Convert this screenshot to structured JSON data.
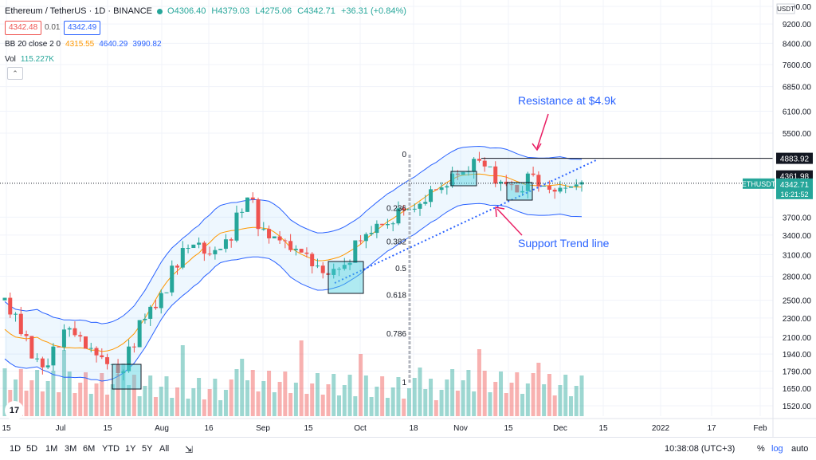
{
  "header": {
    "symbol_title": "Ethereum / TetherUS · 1D · BINANCE",
    "open": "O4306.40",
    "high": "H4379.03",
    "low": "L4275.06",
    "close": "C4342.71",
    "change": "+36.31 (+0.84%)",
    "sell_price": "4342.48",
    "spread": "0.01",
    "buy_price": "4342.49",
    "bb_label": "BB 20 close 2 0",
    "bb_basis": "4315.55",
    "bb_upper": "4640.29",
    "bb_lower": "3990.82",
    "vol_label": "Vol",
    "vol_value": "115.227K",
    "collapse_icon_glyph": "⌃"
  },
  "price_axis": {
    "currency": "USDT",
    "ticks": [
      "10000.00",
      "9200.00",
      "8400.00",
      "7600.00",
      "6850.00",
      "6100.00",
      "5500.00",
      "4883.92",
      "4361.98",
      "4342.71",
      "3700.00",
      "3400.00",
      "3100.00",
      "2800.00",
      "2500.00",
      "2300.00",
      "2100.00",
      "1940.00",
      "1790.00",
      "1650.00",
      "1520.00"
    ],
    "tick_values": [
      10000,
      9200,
      8400,
      7600,
      6850,
      6100,
      5500,
      4883.92,
      4361.98,
      4342.71,
      3700,
      3400,
      3100,
      2800,
      2500,
      2300,
      2100,
      1940,
      1790,
      1650,
      1520
    ],
    "resistance_label": "4883.92",
    "level_label": "4361.98",
    "last_price_label": "4342.71",
    "countdown": "16:21:52",
    "symbol_tag": "ETHUSDT"
  },
  "time_axis": {
    "labels": [
      "15",
      "Jul",
      "15",
      "Aug",
      "16",
      "Sep",
      "15",
      "Oct",
      "18",
      "Nov",
      "15",
      "Dec",
      "15",
      "2022",
      "17",
      "Feb"
    ]
  },
  "fib": {
    "levels": [
      "0",
      "0.236",
      "0.382",
      "0.5",
      "0.618",
      "0.786",
      "1"
    ],
    "values": [
      0,
      0.236,
      0.382,
      0.5,
      0.618,
      0.786,
      1
    ]
  },
  "annotations": {
    "resistance": "Resistance at $4.9k",
    "support": "Support Trend line"
  },
  "toolbar": {
    "timeframes": [
      "1D",
      "5D",
      "1M",
      "3M",
      "6M",
      "YTD",
      "1Y",
      "5Y",
      "All"
    ],
    "clock": "10:38:08 (UTC+3)",
    "percent": "%",
    "log": "log",
    "auto": "auto"
  },
  "logo_text": "17",
  "colors": {
    "up": "#26a69a",
    "down": "#ef5350",
    "band": "#2962ff",
    "basis": "#ff9800",
    "annotation": "#2962ff",
    "arrow": "#e91e63",
    "highlight_box": "#4dd0e1"
  },
  "chart_data": {
    "type": "candlestick",
    "x_range": [
      "Jun 2021",
      "Feb 2022"
    ],
    "y_scale": "log",
    "price_range": [
      1520,
      10000
    ],
    "resistance": 4883.92,
    "last_close": 4342.71,
    "approx_closes": [
      2550,
      2350,
      2100,
      1900,
      1850,
      2000,
      2200,
      2100,
      2000,
      1900,
      1850,
      1800,
      2000,
      2300,
      2400,
      2600,
      2900,
      3200,
      3300,
      3100,
      3200,
      3300,
      3800,
      4000,
      3500,
      3400,
      3300,
      3200,
      3100,
      2950,
      2800,
      2900,
      3000,
      3300,
      3450,
      3550,
      3600,
      3800,
      3850,
      4000,
      4200,
      4300,
      4500,
      4600,
      4800,
      4700,
      4400,
      4300,
      4200,
      4500,
      4300,
      4150,
      4250,
      4342.71
    ],
    "volume": "115.227K"
  }
}
